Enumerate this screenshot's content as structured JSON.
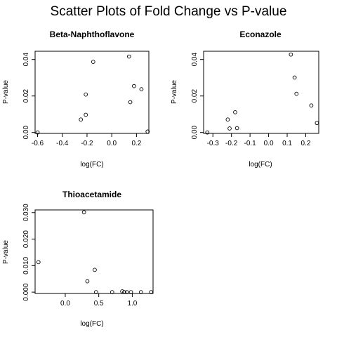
{
  "page": {
    "title": "Scatter Plots of Fold Change vs P-value"
  },
  "chart_data": [
    {
      "type": "scatter",
      "title": "Beta-Naphthoflavone",
      "xlabel": "log(FC)",
      "ylabel": "P-value",
      "xlim": [
        -0.62,
        0.3
      ],
      "ylim": [
        -0.0005,
        0.0445
      ],
      "xticks": [
        -0.6,
        -0.4,
        -0.2,
        0.0,
        0.2
      ],
      "xtick_labels": [
        "-0.6",
        "-0.4",
        "-0.2",
        "0.0",
        "0.2"
      ],
      "yticks": [
        0.0,
        0.02,
        0.04
      ],
      "ytick_labels": [
        "0.00",
        "0.02",
        "0.04"
      ],
      "grid": false,
      "points": [
        {
          "x": -0.6,
          "y": 0.0
        },
        {
          "x": -0.25,
          "y": 0.0071
        },
        {
          "x": -0.21,
          "y": 0.0097
        },
        {
          "x": -0.21,
          "y": 0.0208
        },
        {
          "x": -0.15,
          "y": 0.0387
        },
        {
          "x": 0.14,
          "y": 0.0416
        },
        {
          "x": 0.15,
          "y": 0.0166
        },
        {
          "x": 0.18,
          "y": 0.0254
        },
        {
          "x": 0.24,
          "y": 0.0237
        },
        {
          "x": 0.29,
          "y": 0.0005
        }
      ]
    },
    {
      "type": "scatter",
      "title": "Econazole",
      "xlabel": "log(FC)",
      "ylabel": "P-value",
      "xlim": [
        -0.35,
        0.27
      ],
      "ylim": [
        -0.0005,
        0.0445
      ],
      "xticks": [
        -0.3,
        -0.2,
        -0.1,
        0.0,
        0.1,
        0.2
      ],
      "xtick_labels": [
        "-0.3",
        "-0.2",
        "-0.1",
        "0.0",
        "0.1",
        "0.2"
      ],
      "yticks": [
        0.0,
        0.02,
        0.04
      ],
      "ytick_labels": [
        "0.00",
        "0.02",
        "0.04"
      ],
      "grid": false,
      "points": [
        {
          "x": -0.33,
          "y": 0.0
        },
        {
          "x": -0.22,
          "y": 0.0071
        },
        {
          "x": -0.21,
          "y": 0.0022
        },
        {
          "x": -0.18,
          "y": 0.0111
        },
        {
          "x": -0.17,
          "y": 0.0024
        },
        {
          "x": 0.12,
          "y": 0.0427
        },
        {
          "x": 0.14,
          "y": 0.0301
        },
        {
          "x": 0.15,
          "y": 0.0212
        },
        {
          "x": 0.23,
          "y": 0.0148
        },
        {
          "x": 0.26,
          "y": 0.0052
        }
      ]
    },
    {
      "type": "scatter",
      "title": "Thioacetamide",
      "xlabel": "log(FC)",
      "ylabel": "P-value",
      "xlim": [
        -0.45,
        1.31
      ],
      "ylim": [
        -0.0005,
        0.031
      ],
      "xticks": [
        0.0,
        0.5,
        1.0
      ],
      "xtick_labels": [
        "0.0",
        "0.5",
        "1.0"
      ],
      "yticks": [
        0.0,
        0.01,
        0.02,
        0.03
      ],
      "ytick_labels": [
        "0.000",
        "0.010",
        "0.020",
        "0.030"
      ],
      "grid": false,
      "points": [
        {
          "x": -0.4,
          "y": 0.0113
        },
        {
          "x": 0.28,
          "y": 0.0301
        },
        {
          "x": 0.33,
          "y": 0.0041
        },
        {
          "x": 0.44,
          "y": 0.0084
        },
        {
          "x": 0.46,
          "y": 0.0
        },
        {
          "x": 0.7,
          "y": 0.0
        },
        {
          "x": 0.85,
          "y": 0.0003
        },
        {
          "x": 0.88,
          "y": 0.0
        },
        {
          "x": 0.92,
          "y": 0.0
        },
        {
          "x": 0.98,
          "y": 0.0
        },
        {
          "x": 1.13,
          "y": 0.0
        },
        {
          "x": 1.28,
          "y": 0.0
        }
      ]
    }
  ]
}
